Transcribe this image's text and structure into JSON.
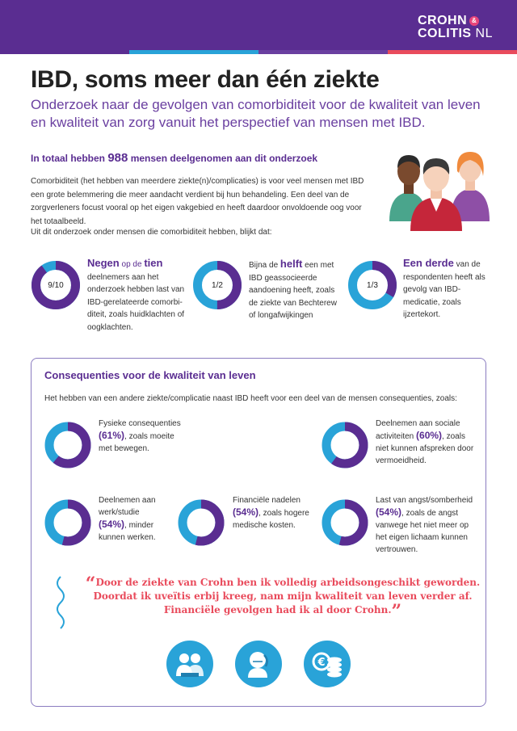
{
  "brand": {
    "logo_line1": "CROHN",
    "logo_amp": "&",
    "logo_line2": "COLITIS",
    "logo_nl": "NL",
    "primary": "#5a2d91",
    "accent_blue": "#29a3d8",
    "accent_red": "#e94b5c"
  },
  "header": {
    "title": "IBD, soms meer dan één ziekte",
    "subtitle": "Onderzoek naar de gevolgen van comorbiditeit voor de kwaliteit van leven en kwaliteit van zorg  vanuit het perspectief van mensen met IBD."
  },
  "summary": {
    "total_pre": "In totaal hebben ",
    "total_num": "988",
    "total_post": " mensen deelgenomen aan dit onderzoek",
    "intro": "Comorbiditeit (het hebben van meerdere ziekte(n)/complicaties) is voor veel mensen met IBD een grote belemmering die meer aandacht verdient bij hun behandeling. Een deel van de zorgverleners focust vooral op het eigen vakgebied en heeft daardoor onvoldoende oog voor het totaalbeeld.",
    "lead": "Uit dit onderzoek onder mensen die comorbiditeit hebben, blijkt dat:"
  },
  "stats": [
    {
      "label": "9/10",
      "fraction": 0.9,
      "hl1": "Negen",
      "mid": " op de ",
      "hl2": "tien",
      "pre": "",
      "rest": "deelnemers aan het onderzoek hebben last van IBD-gerelateerde comorbi-diteit, zoals huidklachten of oogklachten."
    },
    {
      "label": "1/2",
      "fraction": 0.5,
      "pre": "Bijna de ",
      "hl1": "helft",
      "rest": " een met IBD geassocieerde aandoening heeft, zoals de ziekte van Bechterew of longafwijkingen"
    },
    {
      "label": "1/3",
      "fraction": 0.333,
      "hl1": "Een derde",
      "rest": " van de respondenten heeft als gevolg van IBD-medicatie, zoals ijzertekort."
    }
  ],
  "consequences": {
    "title": "Consequenties voor de kwaliteit van leven",
    "intro": "Het hebben van een andere ziekte/complicatie naast IBD heeft voor een deel van de mensen consequenties, zoals:",
    "items": [
      {
        "pre": "Fysieke consequenties",
        "pct": "(61%)",
        "post": ", zoals moeite met bewegen.",
        "fraction": 0.61
      },
      {
        "pre": "Deelnemen aan sociale activiteiten",
        "pct": "(60%)",
        "post": ", zoals niet kunnen afspreken door vermoeidheid.",
        "fraction": 0.6
      },
      {
        "pre": "Deelnemen aan werk/studie",
        "pct": "(54%)",
        "post": ", minder kunnen werken.",
        "fraction": 0.54
      },
      {
        "pre": "Financiële nadelen",
        "pct": "(54%)",
        "post": ", zoals hogere medische kosten.",
        "fraction": 0.54
      },
      {
        "pre": "Last van angst/somberheid",
        "pct": "(54%)",
        "post": ", zoals de angst vanwege het niet meer op het eigen lichaam kunnen vertrouwen.",
        "fraction": 0.54
      }
    ]
  },
  "quote": {
    "open": "“",
    "text": "Door de ziekte van Crohn ben ik volledig arbeidsongeschikt geworden. Doordat ik uveïtis erbij kreeg, nam mijn kwaliteit van leven verder af. Financiële gevolgen had ik al door Crohn.",
    "close": "”"
  },
  "icons": [
    "work-people-icon",
    "worried-person-icon",
    "euro-coins-icon"
  ]
}
